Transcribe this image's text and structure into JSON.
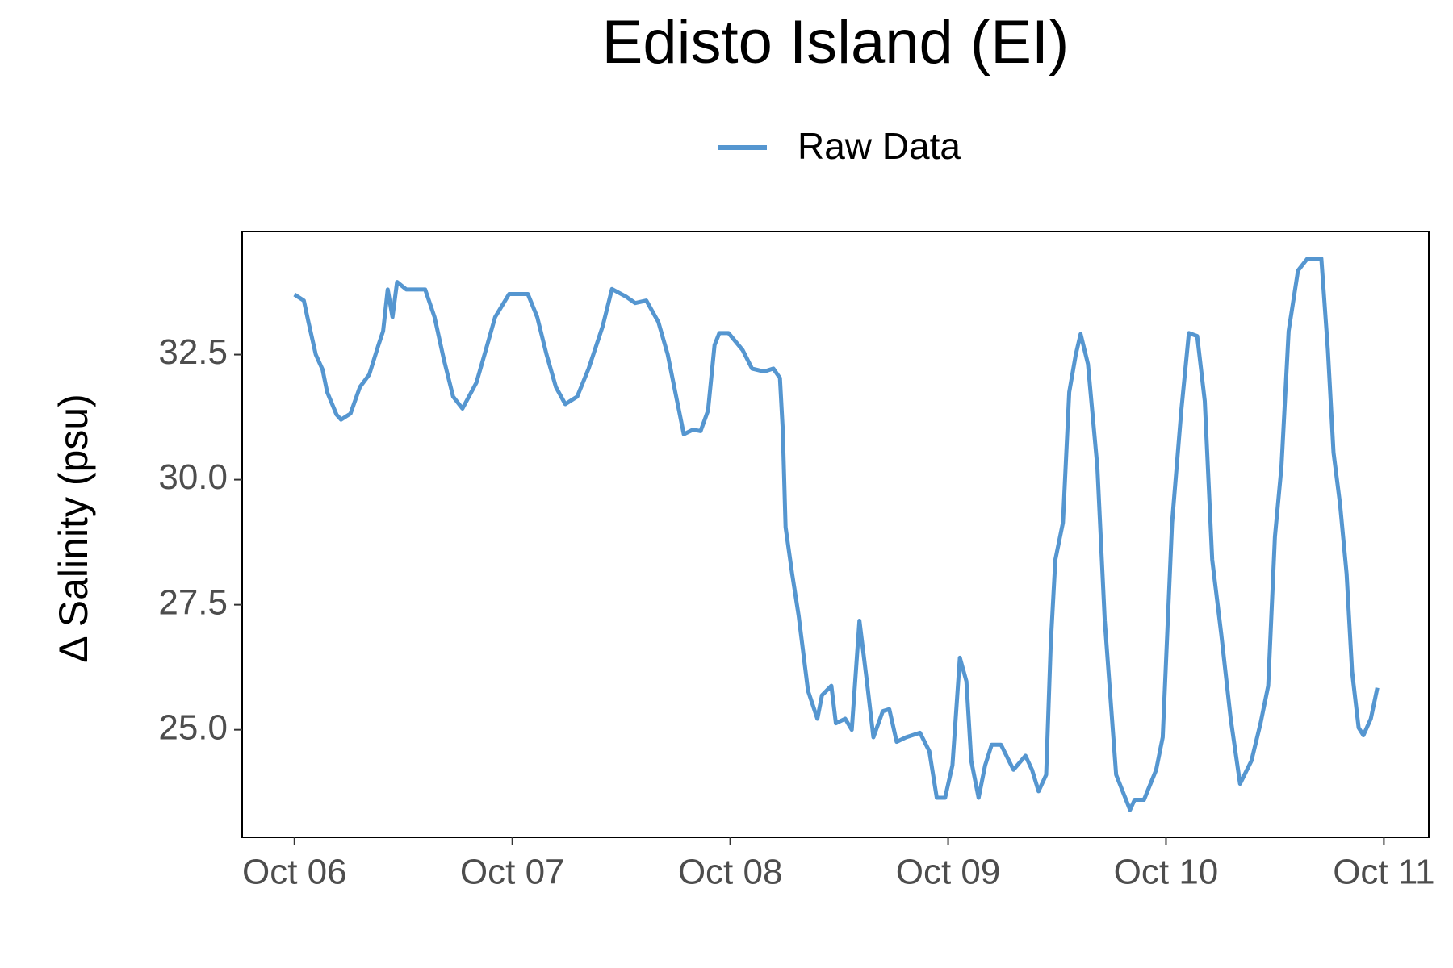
{
  "chart_data": {
    "type": "line",
    "title": "Edisto Island (EI)",
    "y_label": "Δ Salinity (psu)",
    "xlim": [
      -0.24,
      5.206
    ],
    "ylim": [
      22.85,
      34.96
    ],
    "xticks": [
      {
        "value": 0,
        "label": "Oct 06"
      },
      {
        "value": 1,
        "label": "Oct 07"
      },
      {
        "value": 2,
        "label": "Oct 08"
      },
      {
        "value": 3,
        "label": "Oct 09"
      },
      {
        "value": 4,
        "label": "Oct 10"
      },
      {
        "value": 5,
        "label": "Oct 11"
      }
    ],
    "yticks": [
      {
        "value": 25,
        "label": "25.0"
      },
      27.5,
      {
        "value": 30,
        "label": "30.0"
      },
      32.5
    ],
    "grid": false,
    "legend": "top",
    "x": [
      0,
      0.043,
      0.064,
      0.098,
      0.129,
      0.15,
      0.193,
      0.214,
      0.257,
      0.3,
      0.343,
      0.386,
      0.407,
      0.428,
      0.45,
      0.471,
      0.514,
      0.6,
      0.643,
      0.686,
      0.728,
      0.771,
      0.835,
      0.878,
      0.921,
      0.985,
      1.071,
      1.114,
      1.157,
      1.2,
      1.243,
      1.298,
      1.35,
      1.414,
      1.457,
      1.521,
      1.564,
      1.615,
      1.67,
      1.713,
      1.756,
      1.787,
      1.829,
      1.864,
      1.898,
      1.928,
      1.95,
      1.992,
      2.057,
      2.1,
      2.155,
      2.198,
      2.228,
      2.241,
      2.254,
      2.284,
      2.314,
      2.357,
      2.4,
      2.421,
      2.464,
      2.485,
      2.528,
      2.558,
      2.593,
      2.627,
      2.657,
      2.7,
      2.73,
      2.764,
      2.807,
      2.871,
      2.914,
      2.948,
      2.986,
      3.02,
      3.054,
      3.084,
      3.106,
      3.14,
      3.17,
      3.2,
      3.243,
      3.3,
      3.355,
      3.385,
      3.415,
      3.45,
      3.471,
      3.492,
      3.527,
      3.556,
      3.586,
      3.608,
      3.642,
      3.685,
      3.719,
      3.771,
      3.835,
      3.856,
      3.899,
      3.955,
      3.985,
      4.028,
      4.07,
      4.105,
      4.143,
      4.178,
      4.212,
      4.254,
      4.297,
      4.34,
      4.392,
      4.434,
      4.469,
      4.5,
      4.53,
      4.563,
      4.606,
      4.649,
      4.713,
      4.743,
      4.769,
      4.799,
      4.829,
      4.854,
      4.884,
      4.906,
      4.94,
      4.97
    ],
    "series": [
      {
        "name": "Raw Data",
        "color": "#5596d0",
        "values": [
          33.7,
          33.58,
          33.15,
          32.5,
          32.2,
          31.75,
          31.3,
          31.2,
          31.32,
          31.85,
          32.1,
          32.7,
          32.97,
          33.8,
          33.25,
          33.95,
          33.8,
          33.8,
          33.25,
          32.4,
          31.66,
          31.42,
          31.94,
          32.59,
          33.25,
          33.71,
          33.71,
          33.25,
          32.5,
          31.85,
          31.51,
          31.66,
          32.22,
          33.06,
          33.81,
          33.66,
          33.53,
          33.58,
          33.15,
          32.5,
          31.57,
          30.91,
          31.0,
          30.97,
          31.38,
          32.69,
          32.93,
          32.93,
          32.59,
          32.22,
          32.16,
          32.22,
          32.03,
          31.0,
          29.05,
          28.12,
          27.28,
          25.78,
          25.22,
          25.69,
          25.88,
          25.13,
          25.22,
          25.0,
          27.18,
          25.97,
          24.85,
          25.37,
          25.41,
          24.76,
          24.85,
          24.94,
          24.57,
          23.64,
          23.64,
          24.29,
          26.44,
          25.97,
          24.38,
          23.64,
          24.29,
          24.7,
          24.7,
          24.2,
          24.48,
          24.2,
          23.77,
          24.1,
          26.72,
          28.4,
          29.14,
          31.75,
          32.5,
          32.91,
          32.31,
          30.26,
          27.18,
          24.1,
          23.4,
          23.6,
          23.6,
          24.2,
          24.85,
          29.14,
          31.38,
          32.93,
          32.87,
          31.57,
          28.4,
          26.9,
          25.22,
          23.92,
          24.38,
          25.13,
          25.88,
          28.86,
          30.26,
          32.97,
          34.18,
          34.42,
          34.42,
          32.59,
          30.54,
          29.51,
          28.12,
          26.16,
          25.04,
          24.89,
          25.22,
          25.84
        ]
      }
    ]
  }
}
